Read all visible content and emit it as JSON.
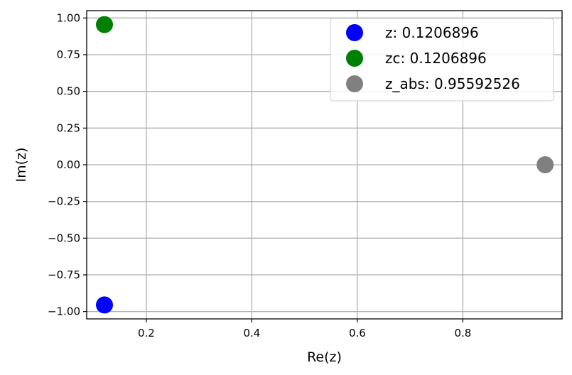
{
  "chart_data": {
    "type": "scatter",
    "xlabel": "Re(z)",
    "ylabel": "Im(z)",
    "xlim": [
      0.087,
      0.988
    ],
    "ylim": [
      -1.05,
      1.05
    ],
    "xticks": [
      0.2,
      0.4,
      0.6,
      0.8
    ],
    "xtick_labels": [
      "0.2",
      "0.4",
      "0.6",
      "0.8"
    ],
    "yticks": [
      1.0,
      0.75,
      0.5,
      0.25,
      0.0,
      -0.25,
      -0.5,
      -0.75,
      -1.0
    ],
    "ytick_labels": [
      "1.00",
      "0.75",
      "0.50",
      "0.25",
      "0.00",
      "−0.25",
      "−0.50",
      "−0.75",
      "−1.00"
    ],
    "grid": true,
    "legend_position": "top-right",
    "series": [
      {
        "name": "z: 0.1206896",
        "color": "#0000ff",
        "points": [
          {
            "x": 0.1206896,
            "y": -0.955
          }
        ]
      },
      {
        "name": "zc: 0.1206896",
        "color": "#008000",
        "points": [
          {
            "x": 0.1206896,
            "y": 0.955
          }
        ]
      },
      {
        "name": "z_abs: 0.95592526",
        "color": "#808080",
        "points": [
          {
            "x": 0.95592526,
            "y": 0.0
          }
        ]
      }
    ]
  }
}
